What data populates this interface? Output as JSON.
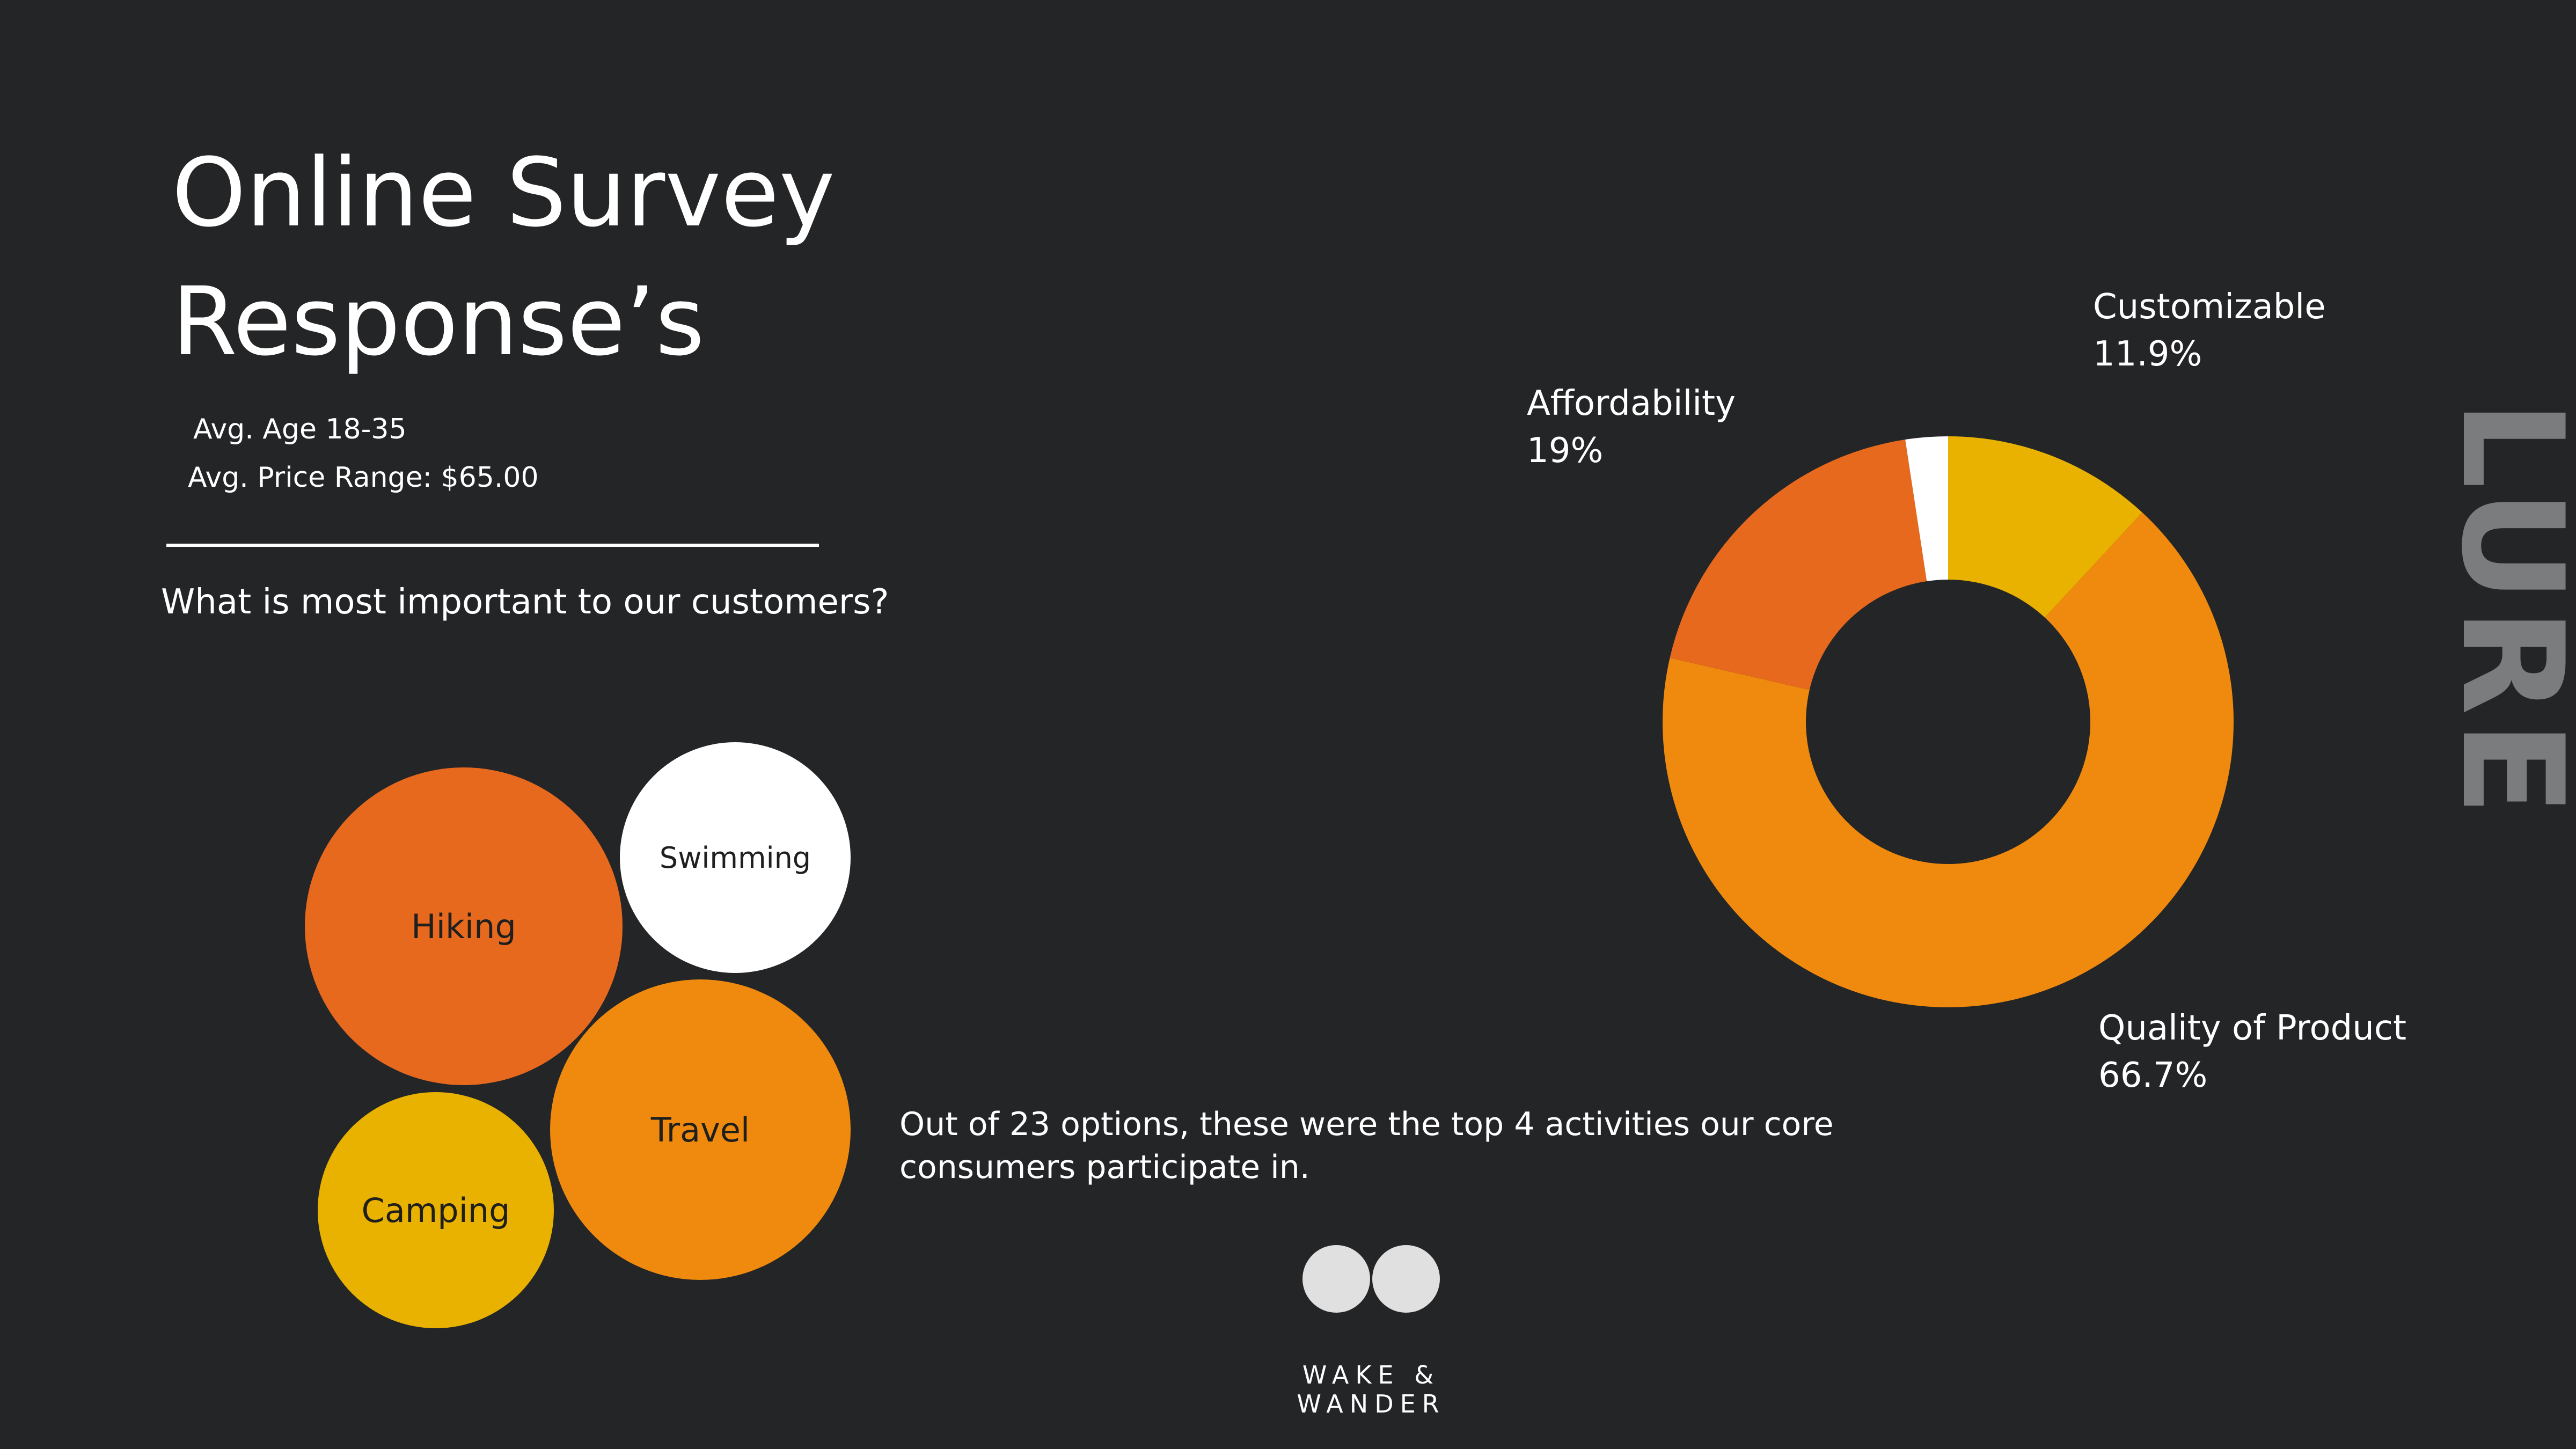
{
  "header": {
    "title_line1": "Online Survey",
    "title_line2": "Response’s",
    "avg_age": "Avg. Age 18-35",
    "avg_price": "Avg. Price Range: $65.00"
  },
  "question": "What is most important to our customers?",
  "activities": {
    "note": "Out of 23 options, these were the top 4 activities our core consumers participate in.",
    "items": [
      {
        "label": "Hiking",
        "color": "#e6691e"
      },
      {
        "label": "Swimming",
        "color": "#ffffff"
      },
      {
        "label": "Travel",
        "color": "#ef8a0e"
      },
      {
        "label": "Camping",
        "color": "#e9b200"
      }
    ]
  },
  "chart_data": {
    "type": "pie",
    "variant": "donut",
    "slices": [
      {
        "name": "Customizable",
        "value": 11.9,
        "label_value": "11.9%",
        "color": "#e9b200"
      },
      {
        "name": "Quality of Product",
        "value": 66.7,
        "label_value": "66.7%",
        "color": "#ef8a0e"
      },
      {
        "name": "Affordability",
        "value": 19,
        "label_value": "19%",
        "color": "#e6691e"
      },
      {
        "name": "",
        "value": 2.4,
        "label_value": "",
        "color": "#ffffff"
      }
    ]
  },
  "brand": {
    "name": "WAKE & WANDER",
    "side_text": "LURE"
  }
}
